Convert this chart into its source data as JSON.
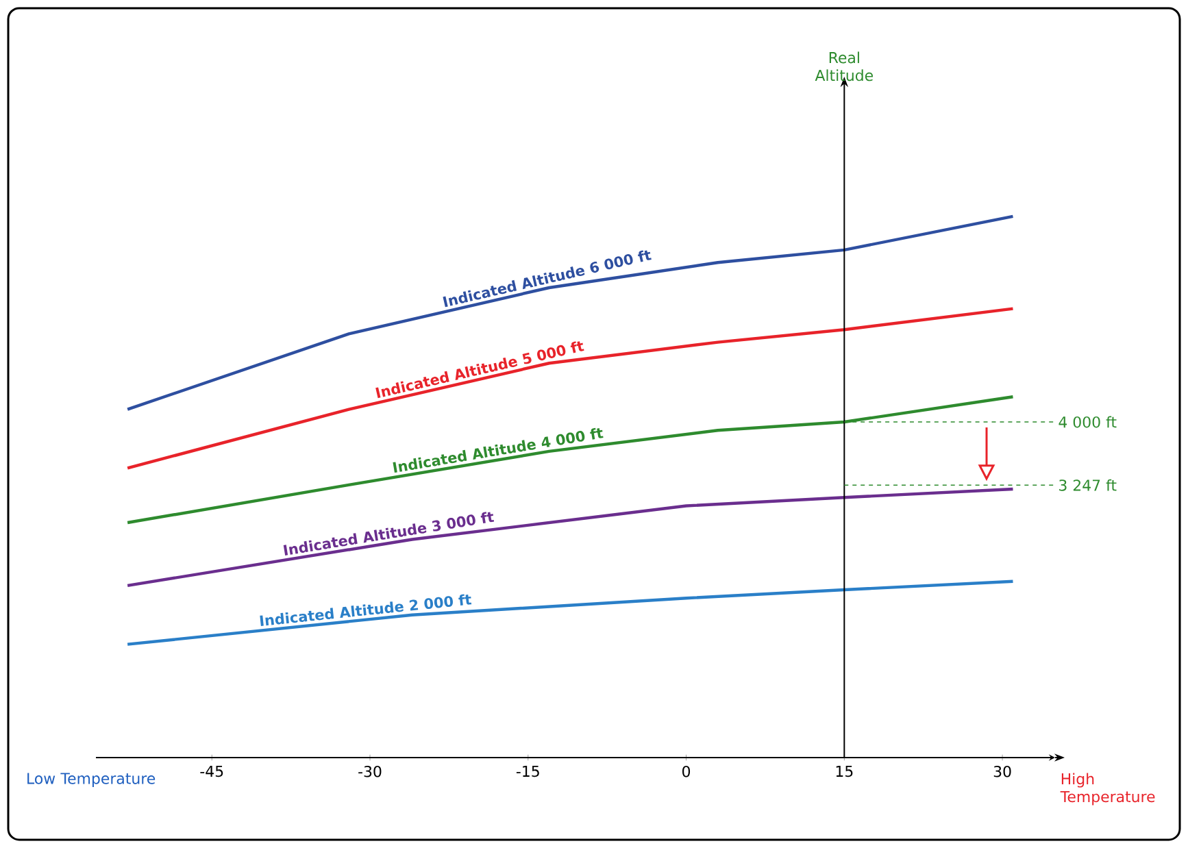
{
  "chart_data": {
    "type": "line",
    "ylabel": "Real Altitude",
    "xlim": [
      -56,
      35
    ],
    "xticks": [
      -45,
      -30,
      -15,
      0,
      15,
      30
    ],
    "ylim": [
      0,
      8000
    ],
    "legend": false,
    "tick_labels": "x",
    "series": [
      {
        "name": "Indicated Altitude 6 000 ft",
        "color": "#2e4fa0",
        "x": [
          -53,
          -32,
          -13,
          3,
          15,
          31
        ],
        "values": [
          4150,
          5050,
          5600,
          5900,
          6050,
          6450
        ]
      },
      {
        "name": "Indicated Altitude 5 000 ft",
        "color": "#e8232a",
        "x": [
          -53,
          -32,
          -13,
          3,
          15,
          31
        ],
        "values": [
          3450,
          4150,
          4700,
          4950,
          5100,
          5350
        ]
      },
      {
        "name": "Indicated Altitude 4 000 ft",
        "color": "#2e8b2e",
        "x": [
          -53,
          -32,
          -13,
          3,
          15,
          31
        ],
        "values": [
          2800,
          3250,
          3650,
          3900,
          4000,
          4300
        ]
      },
      {
        "name": "Indicated Altitude 3 000 ft",
        "color": "#6a2e8e",
        "x": [
          -53,
          -26,
          0,
          15,
          31
        ],
        "values": [
          2050,
          2600,
          3000,
          3100,
          3200
        ]
      },
      {
        "name": "Indicated Altitude 2 000 ft",
        "color": "#2a7fc8",
        "x": [
          -53,
          -26,
          0,
          15,
          31
        ],
        "values": [
          1350,
          1700,
          1900,
          2000,
          2100
        ]
      }
    ],
    "ref_lines": [
      {
        "axis": "x",
        "value": 15,
        "color": "#000000",
        "line_style": "solid"
      },
      {
        "axis": "y",
        "value": 4000,
        "label": "4 000 ft",
        "color": "#2e8b2e",
        "line_style": "dashed"
      },
      {
        "axis": "y",
        "value": 3247,
        "label": "3 247 ft",
        "color": "#2e8b2e",
        "line_style": "dashed"
      }
    ],
    "annotations": [
      "Low Temperature",
      "High Temperature"
    ]
  }
}
